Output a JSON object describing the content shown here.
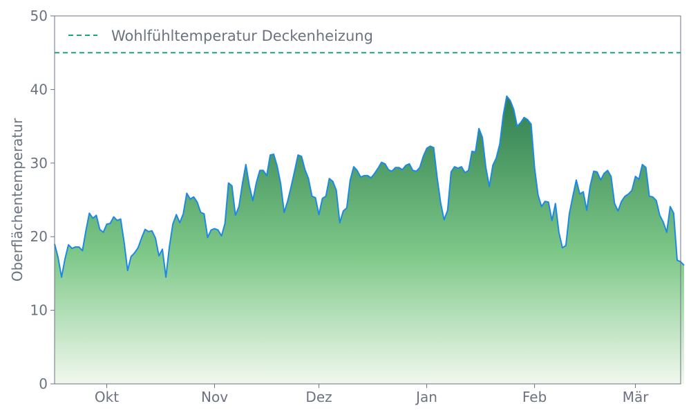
{
  "chart_data": {
    "type": "area",
    "title": "",
    "xlabel": "",
    "ylabel": "Oberflächentemperatur",
    "ylim": [
      0,
      50
    ],
    "yticks": [
      0,
      10,
      20,
      30,
      40,
      50
    ],
    "grid": false,
    "legend_position": "top-left",
    "x_range": [
      "2023-09-16",
      "2024-03-14"
    ],
    "month_ticks": [
      {
        "label": "Okt",
        "date": "2023-10-01"
      },
      {
        "label": "Nov",
        "date": "2023-11-01"
      },
      {
        "label": "Dez",
        "date": "2023-12-01"
      },
      {
        "label": "Jan",
        "date": "2024-01-01"
      },
      {
        "label": "Feb",
        "date": "2024-02-01"
      },
      {
        "label": "Mär",
        "date": "2024-03-01"
      }
    ],
    "start_date": "2023-09-16",
    "values": [
      19.0,
      17.2,
      14.5,
      17.0,
      18.9,
      18.4,
      18.6,
      18.6,
      18.1,
      20.8,
      23.2,
      22.5,
      22.9,
      21.0,
      20.6,
      21.7,
      21.8,
      22.7,
      22.2,
      22.4,
      19.2,
      15.4,
      17.3,
      17.8,
      18.5,
      19.8,
      21.0,
      20.7,
      20.8,
      19.8,
      17.4,
      18.3,
      14.5,
      18.6,
      21.7,
      23.0,
      21.9,
      23.1,
      25.9,
      25.1,
      25.4,
      24.7,
      23.3,
      23.1,
      19.9,
      20.9,
      21.1,
      20.9,
      20.1,
      21.8,
      27.3,
      26.9,
      22.9,
      24.1,
      27.2,
      29.8,
      26.9,
      24.9,
      27.3,
      29.0,
      29.0,
      28.3,
      31.1,
      31.2,
      29.6,
      27.2,
      23.3,
      24.8,
      26.8,
      28.9,
      31.1,
      30.9,
      29.1,
      27.9,
      25.5,
      25.3,
      23.0,
      25.2,
      25.5,
      27.9,
      27.5,
      26.3,
      21.9,
      23.5,
      23.9,
      27.7,
      29.5,
      29.0,
      28.1,
      28.3,
      28.3,
      28.0,
      28.6,
      29.3,
      30.1,
      29.9,
      29.1,
      28.9,
      29.4,
      29.4,
      29.1,
      29.7,
      29.9,
      29.0,
      28.9,
      29.4,
      30.9,
      32.0,
      32.3,
      32.1,
      28.0,
      24.6,
      22.3,
      23.6,
      28.8,
      29.5,
      29.3,
      29.5,
      28.7,
      29.0,
      31.6,
      31.5,
      34.7,
      33.5,
      29.4,
      26.8,
      29.7,
      30.7,
      32.6,
      36.5,
      39.1,
      38.5,
      37.3,
      35.0,
      35.5,
      36.2,
      35.9,
      35.3,
      29.4,
      25.7,
      24.1,
      24.8,
      24.7,
      22.2,
      24.5,
      20.6,
      18.5,
      18.8,
      23.1,
      25.5,
      27.7,
      25.8,
      26.1,
      23.6,
      26.9,
      28.9,
      28.8,
      27.7,
      28.6,
      29.0,
      28.2,
      24.5,
      23.5,
      24.8,
      25.5,
      25.8,
      26.3,
      28.2,
      27.8,
      29.8,
      29.4,
      25.5,
      25.4,
      24.9,
      22.9,
      22.0,
      20.6,
      24.1,
      23.2,
      16.8,
      16.6,
      16.1
    ],
    "series": [
      {
        "name": "",
        "color": "#1e88e5",
        "fill_top": "#2e7d4f",
        "fill_bottom": "#f1f8ee"
      }
    ],
    "reference_lines": [
      {
        "name": "Wohlfühltemperatur Deckenheizung",
        "value": 45,
        "color": "#1aa67a",
        "style": "dashed"
      }
    ]
  }
}
